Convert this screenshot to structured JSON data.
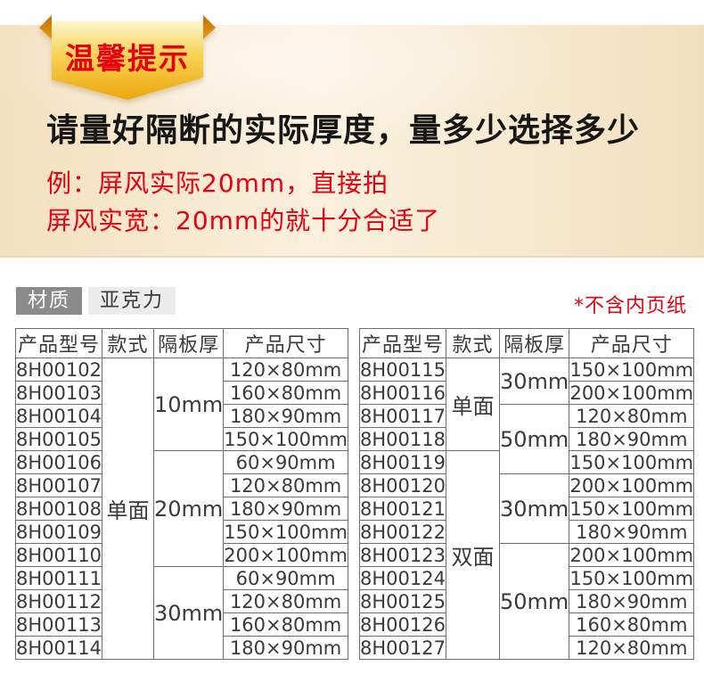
{
  "colors": {
    "accent_red": "#e60012",
    "heading_ink": "#161616",
    "table_ink": "#3a3a3a",
    "table_border": "#6e6e6e",
    "chip_dark_bg": "#8b8b8b",
    "chip_dark_text": "#ffffff",
    "chip_light_bg": "#ececec",
    "ribbon_top": "#fdf6cc",
    "ribbon_mid": "#f8d355",
    "ribbon_bottom": "#eca60d",
    "fold_dark": "#bf6e07",
    "fold_light": "#e99c15"
  },
  "hero": {
    "ribbon_label": "温馨提示",
    "heading": "请量好隔断的实际厚度，量多少选择多少",
    "example_line1": "例：屏风实际20mm，直接拍",
    "example_line2": "屏风实宽：20mm的就十分合适了"
  },
  "materials": {
    "label": "材质",
    "value": "亚克力",
    "note": "*不含内页纸"
  },
  "spec_tables": {
    "headers": [
      "产品型号",
      "款式",
      "隔板厚",
      "产品尺寸"
    ],
    "left": [
      [
        "8H00102",
        {
          "t": "单面",
          "rs": 13
        },
        {
          "t": "10mm",
          "rs": 4
        },
        "120×80mm"
      ],
      [
        "8H00103",
        null,
        null,
        "160×80mm"
      ],
      [
        "8H00104",
        null,
        null,
        "180×90mm"
      ],
      [
        "8H00105",
        null,
        null,
        "150×100mm"
      ],
      [
        "8H00106",
        null,
        {
          "t": "20mm",
          "rs": 5
        },
        "60×90mm"
      ],
      [
        "8H00107",
        null,
        null,
        "120×80mm"
      ],
      [
        "8H00108",
        null,
        null,
        "180×90mm"
      ],
      [
        "8H00109",
        null,
        null,
        "150×100mm"
      ],
      [
        "8H00110",
        null,
        null,
        "200×100mm"
      ],
      [
        "8H00111",
        null,
        {
          "t": "30mm",
          "rs": 4
        },
        "60×90mm"
      ],
      [
        "8H00112",
        null,
        null,
        "120×80mm"
      ],
      [
        "8H00113",
        null,
        null,
        "160×80mm"
      ],
      [
        "8H00114",
        null,
        null,
        "180×90mm"
      ]
    ],
    "right": [
      [
        "8H00115",
        {
          "t": "单面",
          "rs": 4
        },
        {
          "t": "30mm",
          "rs": 2
        },
        "150×100mm"
      ],
      [
        "8H00116",
        null,
        null,
        "200×100mm"
      ],
      [
        "8H00117",
        null,
        {
          "t": "50mm",
          "rs": 3
        },
        "120×80mm"
      ],
      [
        "8H00118",
        null,
        null,
        "180×90mm"
      ],
      [
        "8H00119",
        {
          "t": "双面",
          "rs": 9
        },
        null,
        "150×100mm"
      ],
      [
        "8H00120",
        null,
        {
          "t": "30mm",
          "rs": 3
        },
        "200×100mm"
      ],
      [
        "8H00121",
        null,
        null,
        "150×100mm"
      ],
      [
        "8H00122",
        null,
        null,
        "180×90mm"
      ],
      [
        "8H00123",
        null,
        {
          "t": "50mm",
          "rs": 5
        },
        "200×100mm"
      ],
      [
        "8H00124",
        null,
        null,
        "150×100mm"
      ],
      [
        "8H00125",
        null,
        null,
        "180×90mm"
      ],
      [
        "8H00126",
        null,
        null,
        "160×80mm"
      ],
      [
        "8H00127",
        null,
        null,
        "120×80mm"
      ]
    ]
  }
}
